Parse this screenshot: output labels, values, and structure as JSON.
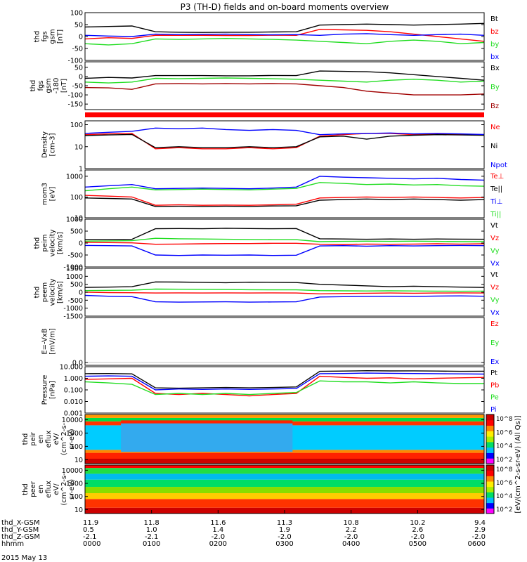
{
  "chart_data": {
    "type": "line",
    "title": "P3 (TH-D) fields and on-board moments overview",
    "date_label": "2015 May 13",
    "panels": [
      {
        "id": "fgs",
        "ylabel": [
          "thd",
          "fgs",
          "gsm",
          "[nT]"
        ],
        "yticks": [
          "100",
          "50",
          "0",
          "-50",
          "-100"
        ],
        "ylim": [
          -100,
          100
        ],
        "scale": "linear",
        "legend": [
          {
            "name": "Bt",
            "color": "#000000"
          },
          {
            "name": "bz",
            "color": "#ff0000"
          },
          {
            "name": "by",
            "color": "#22dd22"
          },
          {
            "name": "bx",
            "color": "#0000ff"
          }
        ],
        "series": [
          {
            "name": "Bt",
            "color": "#000000",
            "values": [
              40,
              42,
              44,
              20,
              18,
              17,
              18,
              18,
              19,
              20,
              48,
              50,
              52,
              50,
              48,
              50,
              52,
              55
            ]
          },
          {
            "name": "bz",
            "color": "#ff0000",
            "values": [
              -10,
              -5,
              -8,
              5,
              5,
              5,
              4,
              4,
              6,
              5,
              30,
              28,
              26,
              20,
              10,
              0,
              -10,
              -20
            ]
          },
          {
            "name": "by",
            "color": "#22dd22",
            "values": [
              -30,
              -35,
              -30,
              -10,
              -12,
              -10,
              -8,
              -10,
              -12,
              -15,
              -20,
              -25,
              -30,
              -20,
              -15,
              -20,
              -30,
              -25
            ]
          },
          {
            "name": "bx",
            "color": "#0000ff",
            "values": [
              5,
              2,
              0,
              10,
              8,
              9,
              10,
              8,
              7,
              8,
              5,
              10,
              12,
              8,
              5,
              8,
              10,
              5
            ]
          }
        ]
      },
      {
        "id": "fgs_rot",
        "ylabel": [
          "thd",
          "fgs",
          "gsm",
          "-180",
          "[nT]"
        ],
        "yticks": [
          "50",
          "0",
          "-50",
          "-100",
          "-150"
        ],
        "ylim": [
          -180,
          80
        ],
        "scale": "linear",
        "legend": [
          {
            "name": "Bx",
            "color": "#000000"
          },
          {
            "name": "By",
            "color": "#22dd22"
          },
          {
            "name": "Bz",
            "color": "#a00000"
          }
        ],
        "series": [
          {
            "name": "Bx",
            "color": "#000000",
            "values": [
              -10,
              -5,
              -8,
              5,
              5,
              5,
              4,
              4,
              6,
              5,
              30,
              28,
              26,
              20,
              10,
              0,
              -10,
              -20
            ]
          },
          {
            "name": "By",
            "color": "#22dd22",
            "values": [
              -30,
              -35,
              -30,
              -10,
              -12,
              -10,
              -8,
              -10,
              -12,
              -15,
              -20,
              -25,
              -30,
              -20,
              -15,
              -20,
              -30,
              -25
            ]
          },
          {
            "name": "Bz",
            "color": "#a00000",
            "values": [
              -60,
              -62,
              -70,
              -40,
              -38,
              -40,
              -38,
              -40,
              -38,
              -40,
              -50,
              -60,
              -80,
              -90,
              -100,
              -100,
              -100,
              -95
            ]
          }
        ]
      },
      {
        "id": "density",
        "ylabel": [
          "Density",
          "[cm-3]"
        ],
        "yticks": [
          "100",
          "10",
          "1"
        ],
        "ylim": [
          1,
          150
        ],
        "scale": "log",
        "legend": [
          {
            "name": "Ne",
            "color": "#ff0000"
          },
          {
            "name": "Ni",
            "color": "#000000"
          },
          {
            "name": "Npot",
            "color": "#0000ff"
          }
        ],
        "series": [
          {
            "name": "Ne",
            "color": "#ff0000",
            "values": [
              35,
              38,
              40,
              8,
              9,
              8,
              8,
              9,
              8,
              9,
              30,
              35,
              40,
              40,
              35,
              38,
              36,
              35
            ]
          },
          {
            "name": "Ni",
            "color": "#000000",
            "values": [
              32,
              34,
              36,
              9,
              10,
              9,
              9,
              10,
              9,
              10,
              28,
              30,
              22,
              30,
              33,
              35,
              34,
              33
            ]
          },
          {
            "name": "Npot",
            "color": "#0000ff",
            "values": [
              40,
              45,
              50,
              70,
              65,
              70,
              60,
              55,
              60,
              55,
              35,
              38,
              40,
              42,
              38,
              40,
              38,
              36
            ]
          }
        ]
      },
      {
        "id": "temp",
        "ylabel": [
          "mom3",
          "[eV]"
        ],
        "yticks": [
          "1000",
          "100",
          "10"
        ],
        "ylim": [
          10,
          2000
        ],
        "scale": "log",
        "legend": [
          {
            "name": "Te⊥",
            "color": "#ff0000"
          },
          {
            "name": "Te||",
            "color": "#000000"
          },
          {
            "name": "Ti⊥",
            "color": "#0000ff"
          },
          {
            "name": "Ti||",
            "color": "#22dd22"
          }
        ],
        "series": [
          {
            "name": "Te⊥",
            "color": "#ff0000",
            "values": [
              120,
              110,
              100,
              40,
              42,
              40,
              41,
              40,
              42,
              45,
              90,
              95,
              100,
              95,
              100,
              95,
              90,
              95
            ]
          },
          {
            "name": "Te||",
            "color": "#000000",
            "values": [
              90,
              85,
              80,
              35,
              36,
              35,
              36,
              35,
              37,
              38,
              70,
              75,
              80,
              75,
              80,
              75,
              70,
              75
            ]
          },
          {
            "name": "Ti⊥",
            "color": "#0000ff",
            "values": [
              300,
              350,
              400,
              250,
              260,
              270,
              260,
              250,
              270,
              300,
              1000,
              900,
              850,
              800,
              750,
              800,
              700,
              650
            ]
          },
          {
            "name": "Ti||",
            "color": "#22dd22",
            "values": [
              200,
              250,
              300,
              220,
              230,
              240,
              230,
              220,
              240,
              260,
              500,
              450,
              400,
              420,
              380,
              400,
              350,
              330
            ]
          }
        ]
      },
      {
        "id": "peim",
        "ylabel": [
          "thd",
          "peim",
          "velocity",
          "[km/s]"
        ],
        "yticks": [
          "1000",
          "500",
          "0",
          "-500",
          "-1000"
        ],
        "ylim": [
          -1000,
          1000
        ],
        "scale": "linear",
        "legend": [
          {
            "name": "Vt",
            "color": "#000000"
          },
          {
            "name": "Vz",
            "color": "#ff0000"
          },
          {
            "name": "Vy",
            "color": "#22dd22"
          },
          {
            "name": "Vx",
            "color": "#0000ff"
          }
        ],
        "series": [
          {
            "name": "Vt",
            "color": "#000000",
            "values": [
              150,
              150,
              160,
              600,
              610,
              600,
              620,
              610,
              600,
              610,
              180,
              170,
              160,
              170,
              160,
              170,
              165,
              160
            ]
          },
          {
            "name": "Vz",
            "color": "#ff0000",
            "values": [
              30,
              20,
              10,
              -50,
              -40,
              -30,
              -20,
              -20,
              -10,
              -10,
              -50,
              -60,
              -40,
              -50,
              -40,
              -30,
              -40,
              -30
            ]
          },
          {
            "name": "Vy",
            "color": "#22dd22",
            "values": [
              80,
              90,
              100,
              200,
              180,
              170,
              160,
              150,
              140,
              140,
              60,
              70,
              80,
              70,
              80,
              70,
              60,
              60
            ]
          },
          {
            "name": "Vx",
            "color": "#0000ff",
            "values": [
              -100,
              -110,
              -120,
              -500,
              -520,
              -500,
              -510,
              -500,
              -520,
              -510,
              -120,
              -110,
              -130,
              -110,
              -120,
              -110,
              -100,
              -110
            ]
          }
        ]
      },
      {
        "id": "peem",
        "ylabel": [
          "thd",
          "peem",
          "velocity",
          "[km/s]"
        ],
        "yticks": [
          "1500",
          "1000",
          "500",
          "0",
          "-500",
          "-1000",
          "-1500"
        ],
        "ylim": [
          -1500,
          1500
        ],
        "scale": "linear",
        "legend": [
          {
            "name": "Vt",
            "color": "#000000"
          },
          {
            "name": "Vz",
            "color": "#ff0000"
          },
          {
            "name": "Vy",
            "color": "#22dd22"
          },
          {
            "name": "Vx",
            "color": "#0000ff"
          }
        ],
        "series": [
          {
            "name": "Vt",
            "color": "#000000",
            "values": [
              300,
              320,
              350,
              650,
              640,
              620,
              600,
              630,
              620,
              610,
              500,
              450,
              400,
              350,
              380,
              350,
              320,
              300
            ]
          },
          {
            "name": "Vz",
            "color": "#ff0000",
            "values": [
              0,
              -20,
              -30,
              -50,
              -40,
              -50,
              -40,
              -50,
              -40,
              -50,
              -100,
              -80,
              -60,
              -50,
              -60,
              -50,
              -40,
              -50
            ]
          },
          {
            "name": "Vy",
            "color": "#22dd22",
            "values": [
              100,
              120,
              130,
              200,
              190,
              180,
              170,
              160,
              150,
              150,
              100,
              90,
              80,
              90,
              80,
              70,
              60,
              70
            ]
          },
          {
            "name": "Vx",
            "color": "#0000ff",
            "values": [
              -200,
              -250,
              -280,
              -600,
              -620,
              -610,
              -600,
              -620,
              -610,
              -600,
              -300,
              -280,
              -260,
              -250,
              -260,
              -240,
              -230,
              -250
            ]
          }
        ]
      },
      {
        "id": "efield",
        "ylabel": [
          "E=-VxB",
          "[mV/m]"
        ],
        "yticks": [
          "0.0"
        ],
        "ylim": [
          -1,
          1
        ],
        "scale": "linear",
        "legend": [
          {
            "name": "Ez",
            "color": "#ff0000"
          },
          {
            "name": "Ey",
            "color": "#22dd22"
          },
          {
            "name": "Ex",
            "color": "#0000ff"
          }
        ],
        "series": []
      },
      {
        "id": "pressure",
        "ylabel": [
          "Pressure",
          "[nPa]"
        ],
        "yticks": [
          "10.000",
          "1.000",
          "0.100",
          "0.010",
          "0.001"
        ],
        "ylim": [
          0.001,
          10
        ],
        "scale": "log",
        "legend": [
          {
            "name": "Pt",
            "color": "#000000"
          },
          {
            "name": "Pb",
            "color": "#ff0000"
          },
          {
            "name": "Pe",
            "color": "#22dd22"
          },
          {
            "name": "Pi",
            "color": "#0000ff"
          }
        ],
        "series": [
          {
            "name": "Pt",
            "color": "#000000",
            "values": [
              2.5,
              2.6,
              2.4,
              0.15,
              0.14,
              0.15,
              0.16,
              0.15,
              0.16,
              0.18,
              4.0,
              4.2,
              4.5,
              4.3,
              4.4,
              4.2,
              4.0,
              4.1
            ]
          },
          {
            "name": "Pb",
            "color": "#ff0000",
            "values": [
              0.8,
              0.9,
              1.0,
              0.05,
              0.04,
              0.05,
              0.04,
              0.03,
              0.04,
              0.05,
              1.5,
              1.2,
              1.0,
              1.1,
              0.9,
              1.0,
              1.1,
              1.2
            ]
          },
          {
            "name": "Pe",
            "color": "#22dd22",
            "values": [
              0.5,
              0.4,
              0.3,
              0.04,
              0.05,
              0.04,
              0.05,
              0.04,
              0.05,
              0.06,
              0.6,
              0.5,
              0.5,
              0.4,
              0.5,
              0.4,
              0.35,
              0.35
            ]
          },
          {
            "name": "Pi",
            "color": "#0000ff",
            "values": [
              1.5,
              1.6,
              1.5,
              0.1,
              0.12,
              0.11,
              0.12,
              0.11,
              0.12,
              0.13,
              2.5,
              2.6,
              2.8,
              2.7,
              2.6,
              2.5,
              2.4,
              2.3
            ]
          }
        ]
      },
      {
        "id": "peir_spec",
        "type": "heatmap",
        "ylabel": [
          "thd",
          "peir",
          "en",
          "eflux",
          "eV/",
          "(cm^2-s-",
          "sr-eV)"
        ],
        "yticks": [
          "10000",
          "1000",
          "100",
          "10"
        ],
        "ylim": [
          5,
          25000
        ],
        "scale": "log"
      },
      {
        "id": "peer_spec",
        "type": "heatmap",
        "ylabel": [
          "thd",
          "peer",
          "en",
          "eflux",
          "eV/",
          "(cm^2-s-",
          "sr-eV)"
        ],
        "yticks": [
          "10000",
          "1000",
          "100",
          "10"
        ],
        "ylim": [
          5,
          25000
        ],
        "scale": "log"
      }
    ],
    "colorbar": {
      "label": "[eV/(cm^2-s-sr-eV) (All Qs)]",
      "ticks": [
        "10^8",
        "10^6",
        "10^4",
        "10^2"
      ],
      "lower_ticks": [
        "10^8",
        "10^6",
        "10^4",
        "10^2"
      ]
    },
    "xaxis": {
      "row_labels": [
        "thd_X-GSM",
        "thd_Y-GSM",
        "thd_Z-GSM",
        "hhmm"
      ],
      "ticks": [
        {
          "x": "11.9",
          "y": "0.5",
          "z": "-2.1",
          "t": "0000"
        },
        {
          "x": "11.8",
          "y": "1.0",
          "z": "-2.1",
          "t": "0100"
        },
        {
          "x": "11.6",
          "y": "1.4",
          "z": "-2.0",
          "t": "0200"
        },
        {
          "x": "11.3",
          "y": "1.9",
          "z": "-2.0",
          "t": "0300"
        },
        {
          "x": "10.8",
          "y": "2.2",
          "z": "-2.0",
          "t": "0400"
        },
        {
          "x": "10.2",
          "y": "2.6",
          "z": "-2.0",
          "t": "0500"
        },
        {
          "x": "9.4",
          "y": "2.9",
          "z": "-2.0",
          "t": "0600"
        }
      ]
    }
  }
}
